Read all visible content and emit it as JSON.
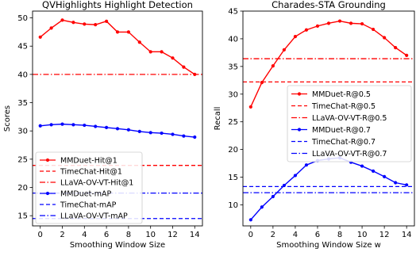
{
  "chart_data": [
    {
      "type": "line",
      "title": "QVHighlights Highlight Detection",
      "xlabel": "Smoothing Window Size",
      "ylabel": "Scores",
      "xlim": [
        -0.7,
        14.7
      ],
      "ylim": [
        13.2,
        51.2
      ],
      "xticks": [
        0,
        2,
        4,
        6,
        8,
        10,
        12,
        14
      ],
      "yticks": [
        15,
        20,
        25,
        30,
        35,
        40,
        45,
        50
      ],
      "grid": false,
      "legend_position": "lower-left",
      "series": [
        {
          "name": "MMDuet-Hit@1",
          "color": "#ff0000",
          "style": "solid-marker",
          "x": [
            0,
            1,
            2,
            3,
            4,
            5,
            6,
            7,
            8,
            9,
            10,
            11,
            12,
            13,
            14
          ],
          "y": [
            46.6,
            48.2,
            49.6,
            49.2,
            48.9,
            48.8,
            49.4,
            47.5,
            47.5,
            45.7,
            44.0,
            44.0,
            42.9,
            41.3,
            40.0
          ]
        },
        {
          "name": "TimeChat-Hit@1",
          "color": "#ff0000",
          "style": "dashed",
          "y": 23.9
        },
        {
          "name": "LLaVA-OV-VT-Hit@1",
          "color": "#ff0000",
          "style": "dashdot",
          "y": 40.0
        },
        {
          "name": "MMDuet-mAP",
          "color": "#0000ff",
          "style": "solid-marker",
          "x": [
            0,
            1,
            2,
            3,
            4,
            5,
            6,
            7,
            8,
            9,
            10,
            11,
            12,
            13,
            14
          ],
          "y": [
            30.9,
            31.1,
            31.2,
            31.1,
            31.0,
            30.8,
            30.6,
            30.4,
            30.2,
            29.9,
            29.7,
            29.6,
            29.4,
            29.1,
            28.9
          ]
        },
        {
          "name": "TimeChat-mAP",
          "color": "#0000ff",
          "style": "dashed",
          "y": 14.5
        },
        {
          "name": "LLaVA-OV-VT-mAP",
          "color": "#0000ff",
          "style": "dashdot",
          "y": 19.0
        }
      ]
    },
    {
      "type": "line",
      "title": "Charades-STA Grounding",
      "xlabel": "Smoothing Window Size w",
      "ylabel": "Recall",
      "xlim": [
        -0.7,
        14.7
      ],
      "ylim": [
        6.2,
        45.0
      ],
      "xticks": [
        0,
        2,
        4,
        6,
        8,
        10,
        12,
        14
      ],
      "yticks": [
        10,
        15,
        20,
        25,
        30,
        35,
        40,
        45
      ],
      "grid": false,
      "legend_position": "center-right",
      "series": [
        {
          "name": "MMDuet-R@0.5",
          "color": "#ff0000",
          "style": "solid-marker",
          "x": [
            0,
            1,
            2,
            3,
            4,
            5,
            6,
            7,
            8,
            9,
            10,
            11,
            12,
            13,
            14
          ],
          "y": [
            27.7,
            32.1,
            35.1,
            38.0,
            40.4,
            41.6,
            42.3,
            42.8,
            43.2,
            42.8,
            42.7,
            41.7,
            40.2,
            38.4,
            37.0
          ]
        },
        {
          "name": "TimeChat-R@0.5",
          "color": "#ff0000",
          "style": "dashed",
          "y": 32.2
        },
        {
          "name": "LLaVA-OV-VT-R@0.5",
          "color": "#ff0000",
          "style": "dashdot",
          "y": 36.4
        },
        {
          "name": "MMDuet-R@0.7",
          "color": "#0000ff",
          "style": "solid-marker",
          "x": [
            0,
            1,
            2,
            3,
            4,
            5,
            6,
            7,
            8,
            9,
            10,
            11,
            12,
            13,
            14
          ],
          "y": [
            7.3,
            9.6,
            11.5,
            13.5,
            15.3,
            17.2,
            18.0,
            18.3,
            18.5,
            17.7,
            17.0,
            16.1,
            15.1,
            14.0,
            13.6
          ]
        },
        {
          "name": "TimeChat-R@0.7",
          "color": "#0000ff",
          "style": "dashed",
          "y": 13.3
        },
        {
          "name": "LLaVA-OV-VT-R@0.7",
          "color": "#0000ff",
          "style": "dashdot",
          "y": 12.2
        }
      ]
    }
  ]
}
